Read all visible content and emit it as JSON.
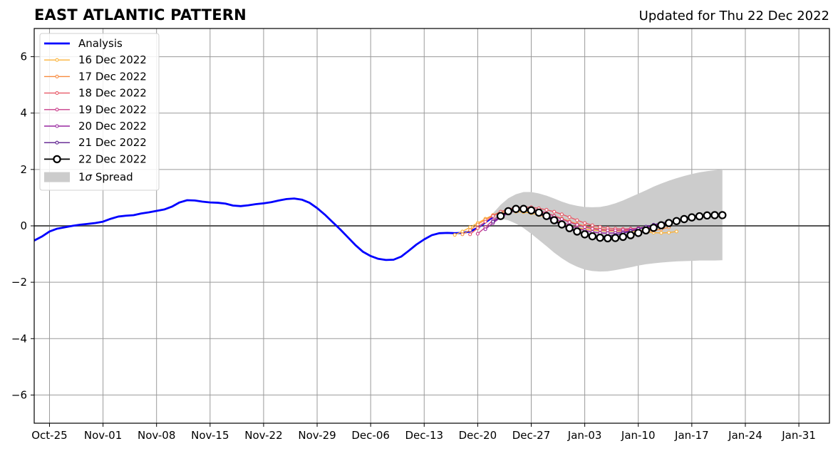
{
  "header": {
    "title": "EAST ATLANTIC PATTERN",
    "updated": "Updated for Thu 22 Dec 2022"
  },
  "chart_data": {
    "type": "line",
    "title": "EAST ATLANTIC PATTERN",
    "subtitle": "Updated for Thu 22 Dec 2022",
    "xlabel": "",
    "ylabel": "",
    "x_range": [
      "2022-10-23",
      "2023-02-04"
    ],
    "ylim": [
      -7,
      7
    ],
    "x_ticks": [
      {
        "date": "2022-10-25",
        "label": "Oct-25"
      },
      {
        "date": "2022-11-01",
        "label": "Nov-01"
      },
      {
        "date": "2022-11-08",
        "label": "Nov-08"
      },
      {
        "date": "2022-11-15",
        "label": "Nov-15"
      },
      {
        "date": "2022-11-22",
        "label": "Nov-22"
      },
      {
        "date": "2022-11-29",
        "label": "Nov-29"
      },
      {
        "date": "2022-12-06",
        "label": "Dec-06"
      },
      {
        "date": "2022-12-13",
        "label": "Dec-13"
      },
      {
        "date": "2022-12-20",
        "label": "Dec-20"
      },
      {
        "date": "2022-12-27",
        "label": "Dec-27"
      },
      {
        "date": "2023-01-03",
        "label": "Jan-03"
      },
      {
        "date": "2023-01-10",
        "label": "Jan-10"
      },
      {
        "date": "2023-01-17",
        "label": "Jan-17"
      },
      {
        "date": "2023-01-24",
        "label": "Jan-24"
      },
      {
        "date": "2023-01-31",
        "label": "Jan-31"
      }
    ],
    "y_ticks": [
      {
        "value": 6,
        "label": "6"
      },
      {
        "value": 4,
        "label": "4"
      },
      {
        "value": 2,
        "label": "2"
      },
      {
        "value": 0,
        "label": "0"
      },
      {
        "value": -2,
        "label": "−2"
      },
      {
        "value": -4,
        "label": "−4"
      },
      {
        "value": -6,
        "label": "−6"
      }
    ],
    "grid": true,
    "legend_position": "top-left",
    "analysis": {
      "name": "Analysis",
      "color": "#0000ff",
      "x": [
        "2022-10-23",
        "2022-10-24",
        "2022-10-25",
        "2022-10-26",
        "2022-10-27",
        "2022-10-28",
        "2022-10-29",
        "2022-10-30",
        "2022-10-31",
        "2022-11-01",
        "2022-11-02",
        "2022-11-03",
        "2022-11-04",
        "2022-11-05",
        "2022-11-06",
        "2022-11-07",
        "2022-11-08",
        "2022-11-09",
        "2022-11-10",
        "2022-11-11",
        "2022-11-12",
        "2022-11-13",
        "2022-11-14",
        "2022-11-15",
        "2022-11-16",
        "2022-11-17",
        "2022-11-18",
        "2022-11-19",
        "2022-11-20",
        "2022-11-21",
        "2022-11-22",
        "2022-11-23",
        "2022-11-24",
        "2022-11-25",
        "2022-11-26",
        "2022-11-27",
        "2022-11-28",
        "2022-11-29",
        "2022-11-30",
        "2022-12-01",
        "2022-12-02",
        "2022-12-03",
        "2022-12-04",
        "2022-12-05",
        "2022-12-06",
        "2022-12-07",
        "2022-12-08",
        "2022-12-09",
        "2022-12-10",
        "2022-12-11",
        "2022-12-12",
        "2022-12-13",
        "2022-12-14",
        "2022-12-15",
        "2022-12-16",
        "2022-12-17",
        "2022-12-18",
        "2022-12-19",
        "2022-12-20",
        "2022-12-21",
        "2022-12-22"
      ],
      "y": [
        -0.52,
        -0.38,
        -0.2,
        -0.1,
        -0.05,
        0.0,
        0.04,
        0.07,
        0.1,
        0.15,
        0.25,
        0.33,
        0.36,
        0.38,
        0.44,
        0.48,
        0.53,
        0.58,
        0.68,
        0.83,
        0.91,
        0.9,
        0.86,
        0.83,
        0.82,
        0.79,
        0.72,
        0.7,
        0.73,
        0.77,
        0.8,
        0.84,
        0.9,
        0.95,
        0.97,
        0.93,
        0.82,
        0.63,
        0.4,
        0.14,
        -0.12,
        -0.4,
        -0.68,
        -0.92,
        -1.07,
        -1.17,
        -1.21,
        -1.2,
        -1.09,
        -0.88,
        -0.66,
        -0.48,
        -0.33,
        -0.26,
        -0.25,
        -0.26,
        -0.25,
        -0.2,
        -0.07,
        0.12,
        0.32
      ]
    },
    "spread": {
      "name": "1σ Spread",
      "color": "#cccccc",
      "x": [
        "2022-12-22",
        "2022-12-23",
        "2022-12-24",
        "2022-12-25",
        "2022-12-26",
        "2022-12-27",
        "2022-12-28",
        "2022-12-29",
        "2022-12-30",
        "2022-12-31",
        "2023-01-01",
        "2023-01-02",
        "2023-01-03",
        "2023-01-04",
        "2023-01-05",
        "2023-01-06",
        "2023-01-07",
        "2023-01-08",
        "2023-01-09",
        "2023-01-10",
        "2023-01-11",
        "2023-01-12",
        "2023-01-13",
        "2023-01-14",
        "2023-01-15",
        "2023-01-16",
        "2023-01-17",
        "2023-01-18",
        "2023-01-19",
        "2023-01-20",
        "2023-01-21"
      ],
      "upper": [
        0.45,
        0.75,
        0.98,
        1.12,
        1.2,
        1.2,
        1.15,
        1.07,
        0.97,
        0.86,
        0.77,
        0.71,
        0.67,
        0.66,
        0.67,
        0.72,
        0.8,
        0.9,
        1.02,
        1.14,
        1.26,
        1.39,
        1.5,
        1.6,
        1.69,
        1.77,
        1.84,
        1.9,
        1.94,
        1.97,
        2.0
      ],
      "lower": [
        0.2,
        0.25,
        0.2,
        0.08,
        -0.08,
        -0.28,
        -0.5,
        -0.72,
        -0.95,
        -1.15,
        -1.32,
        -1.45,
        -1.55,
        -1.6,
        -1.62,
        -1.61,
        -1.57,
        -1.52,
        -1.47,
        -1.41,
        -1.36,
        -1.33,
        -1.3,
        -1.28,
        -1.26,
        -1.25,
        -1.24,
        -1.23,
        -1.23,
        -1.23,
        -1.22
      ]
    },
    "forecasts": [
      {
        "name": "16 Dec 2022",
        "color": "#fbb33a",
        "start": "2022-12-17",
        "y": [
          -0.32,
          -0.2,
          -0.05,
          0.1,
          0.25,
          0.38,
          0.47,
          0.5,
          0.5,
          0.49,
          0.45,
          0.38,
          0.3,
          0.2,
          0.1,
          0.02,
          -0.06,
          -0.12,
          -0.15,
          -0.17,
          -0.18,
          -0.18,
          -0.18,
          -0.19,
          -0.2,
          -0.22,
          -0.24,
          -0.25,
          -0.24,
          -0.2
        ]
      },
      {
        "name": "17 Dec 2022",
        "color": "#f88b3f",
        "start": "2022-12-18",
        "y": [
          -0.3,
          -0.15,
          0.05,
          0.22,
          0.38,
          0.5,
          0.57,
          0.6,
          0.6,
          0.57,
          0.52,
          0.45,
          0.36,
          0.26,
          0.16,
          0.07,
          -0.01,
          -0.07,
          -0.11,
          -0.14,
          -0.15,
          -0.16,
          -0.16,
          -0.17,
          -0.18,
          -0.17,
          -0.12,
          -0.05
        ]
      },
      {
        "name": "18 Dec 2022",
        "color": "#e85a68",
        "start": "2022-12-19",
        "y": [
          -0.3,
          -0.08,
          0.15,
          0.35,
          0.5,
          0.6,
          0.65,
          0.67,
          0.66,
          0.62,
          0.57,
          0.5,
          0.41,
          0.31,
          0.2,
          0.1,
          0.02,
          -0.04,
          -0.08,
          -0.1,
          -0.11,
          -0.1,
          -0.08,
          -0.05,
          -0.02,
          0.02,
          0.06
        ]
      },
      {
        "name": "19 Dec 2022",
        "color": "#c83d8a",
        "start": "2022-12-20",
        "y": [
          -0.28,
          -0.05,
          0.2,
          0.4,
          0.53,
          0.6,
          0.62,
          0.6,
          0.54,
          0.45,
          0.35,
          0.24,
          0.13,
          0.04,
          -0.04,
          -0.1,
          -0.14,
          -0.16,
          -0.16,
          -0.15,
          -0.12,
          -0.08,
          -0.04,
          0.0,
          0.04,
          0.07
        ]
      },
      {
        "name": "20 Dec 2022",
        "color": "#9928a0",
        "start": "2022-12-21",
        "y": [
          -0.12,
          0.1,
          0.3,
          0.45,
          0.55,
          0.58,
          0.55,
          0.48,
          0.38,
          0.26,
          0.14,
          0.02,
          -0.08,
          -0.16,
          -0.22,
          -0.25,
          -0.26,
          -0.25,
          -0.22,
          -0.17,
          -0.11,
          -0.05,
          0.01,
          0.07,
          0.12
        ]
      },
      {
        "name": "21 Dec 2022",
        "color": "#5b1c8e",
        "start": "2022-12-22",
        "y": [
          0.15,
          0.33,
          0.48,
          0.57,
          0.58,
          0.52,
          0.43,
          0.3,
          0.16,
          0.02,
          -0.11,
          -0.22,
          -0.3,
          -0.35,
          -0.37,
          -0.36,
          -0.32,
          -0.26,
          -0.19,
          -0.11,
          -0.03,
          0.04,
          0.1,
          0.14,
          0.18
        ]
      },
      {
        "name": "22 Dec 2022",
        "color": "#000000",
        "start": "2022-12-23",
        "y": [
          0.35,
          0.52,
          0.6,
          0.6,
          0.55,
          0.47,
          0.35,
          0.2,
          0.05,
          -0.08,
          -0.2,
          -0.3,
          -0.37,
          -0.42,
          -0.44,
          -0.43,
          -0.39,
          -0.33,
          -0.25,
          -0.16,
          -0.07,
          0.02,
          0.1,
          0.17,
          0.24,
          0.3,
          0.34,
          0.37,
          0.38,
          0.38
        ]
      }
    ]
  },
  "legend": {
    "analysis_label": "Analysis",
    "spread_label": "1σ Spread",
    "spread_prefix": "1",
    "spread_sigma": "σ",
    "spread_suffix": " Spread"
  }
}
